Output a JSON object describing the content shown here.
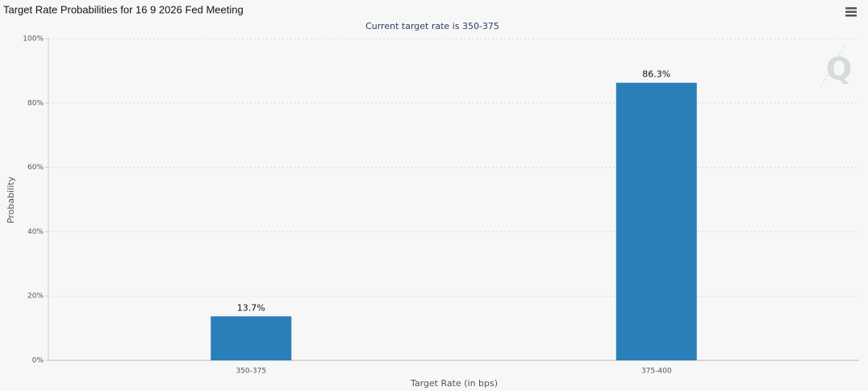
{
  "chart_data": {
    "type": "bar",
    "title": "Target Rate Probabilities for 16 9 2026 Fed Meeting",
    "subtitle": "Current target rate is 350-375",
    "x_label": "Target Rate (in bps)",
    "y_label": "Probability",
    "categories": [
      "350-375",
      "375-400"
    ],
    "values": [
      13.7,
      86.3
    ],
    "value_labels": [
      "13.7%",
      "86.3%"
    ],
    "color": "#2b7fb8",
    "ylim": [
      0,
      100
    ],
    "yticks": [
      {
        "value": 0,
        "label": "0%"
      },
      {
        "value": 20,
        "label": "20%"
      },
      {
        "value": 40,
        "label": "40%"
      },
      {
        "value": 60,
        "label": "60%"
      },
      {
        "value": 80,
        "label": "80%"
      },
      {
        "value": 100,
        "label": "100%"
      }
    ],
    "grid": true
  }
}
